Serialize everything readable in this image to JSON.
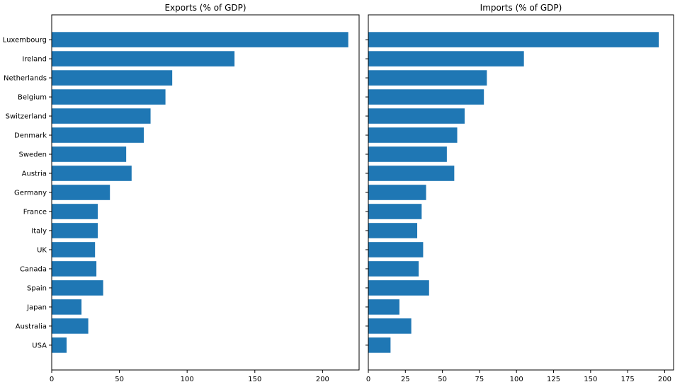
{
  "chart_data": [
    {
      "type": "bar",
      "orientation": "horizontal",
      "title": "Exports (% of GDP)",
      "categories": [
        "Luxembourg",
        "Ireland",
        "Netherlands",
        "Belgium",
        "Switzerland",
        "Denmark",
        "Sweden",
        "Austria",
        "Germany",
        "France",
        "Italy",
        "UK",
        "Canada",
        "Spain",
        "Japan",
        "Australia",
        "USA"
      ],
      "values": [
        219,
        135,
        89,
        84,
        73,
        68,
        55,
        59,
        43,
        34,
        34,
        32,
        33,
        38,
        22,
        27,
        11
      ],
      "xlim": [
        0,
        227
      ],
      "xticks": [
        0,
        50,
        100,
        150,
        200
      ],
      "bar_color": "#1f77b4"
    },
    {
      "type": "bar",
      "orientation": "horizontal",
      "title": "Imports (% of GDP)",
      "categories": [
        "Luxembourg",
        "Ireland",
        "Netherlands",
        "Belgium",
        "Switzerland",
        "Denmark",
        "Sweden",
        "Austria",
        "Germany",
        "France",
        "Italy",
        "UK",
        "Canada",
        "Spain",
        "Japan",
        "Australia",
        "USA"
      ],
      "values": [
        196,
        105,
        80,
        78,
        65,
        60,
        53,
        58,
        39,
        36,
        33,
        37,
        34,
        41,
        21,
        29,
        15
      ],
      "xlim": [
        0,
        206
      ],
      "xticks": [
        0,
        25,
        50,
        75,
        100,
        125,
        150,
        175,
        200
      ],
      "bar_color": "#1f77b4"
    }
  ]
}
